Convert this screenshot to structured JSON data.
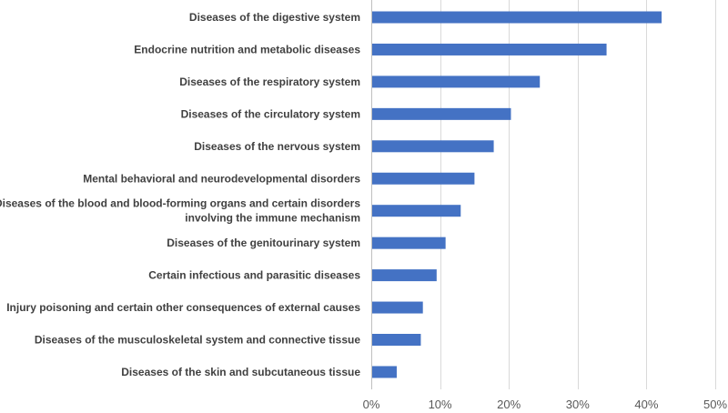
{
  "chart_data": {
    "type": "bar",
    "orientation": "horizontal",
    "title": "",
    "xlabel": "",
    "ylabel": "",
    "xlim": [
      0,
      50
    ],
    "x_ticks": [
      "0%",
      "10%",
      "20%",
      "30%",
      "40%",
      "50%"
    ],
    "x_tick_values": [
      0,
      10,
      20,
      30,
      40,
      50
    ],
    "grid": true,
    "legend": "none",
    "bar_color": "#4472c4",
    "categories": [
      [
        "Diseases of the digestive system"
      ],
      [
        "Endocrine nutrition and metabolic diseases"
      ],
      [
        "Diseases of the respiratory system"
      ],
      [
        "Diseases of the circulatory system"
      ],
      [
        "Diseases of the nervous system"
      ],
      [
        "Mental behavioral and neurodevelopmental disorders"
      ],
      [
        "Diseases of the blood and blood-forming organs and certain disorders",
        "involving the immune mechanism"
      ],
      [
        "Diseases of the genitourinary system"
      ],
      [
        "Certain infectious and parasitic diseases"
      ],
      [
        "Injury poisoning and certain other consequences of external causes"
      ],
      [
        "Diseases of the musculoskeletal system and connective tissue"
      ],
      [
        "Diseases of the skin and subcutaneous tissue"
      ]
    ],
    "values": [
      42.2,
      34.2,
      24.5,
      20.3,
      17.8,
      15.0,
      13.0,
      10.8,
      9.5,
      7.5,
      7.2,
      3.7
    ]
  }
}
